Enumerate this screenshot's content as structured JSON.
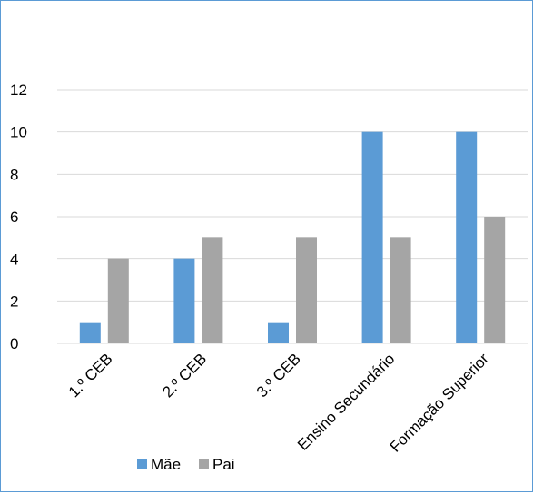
{
  "chart_data": {
    "type": "bar",
    "categories": [
      "1.º CEB",
      "2.º CEB",
      "3.º CEB",
      "Ensino Secundário",
      "Formação Superior"
    ],
    "series": [
      {
        "name": "Mãe",
        "values": [
          1,
          4,
          1,
          10,
          10
        ],
        "color": "#5b9bd5"
      },
      {
        "name": "Pai",
        "values": [
          4,
          5,
          5,
          5,
          6
        ],
        "color": "#a5a5a5"
      }
    ],
    "yticks": [
      0,
      2,
      4,
      6,
      8,
      10,
      12
    ],
    "ylim": [
      0,
      12
    ],
    "title": "",
    "xlabel": "",
    "ylabel": "",
    "grid": true,
    "legend_position": "bottom-left",
    "colors": {
      "border": "#5b9bd5",
      "grid": "#d9d9d9",
      "axis": "#d9d9d9"
    }
  }
}
